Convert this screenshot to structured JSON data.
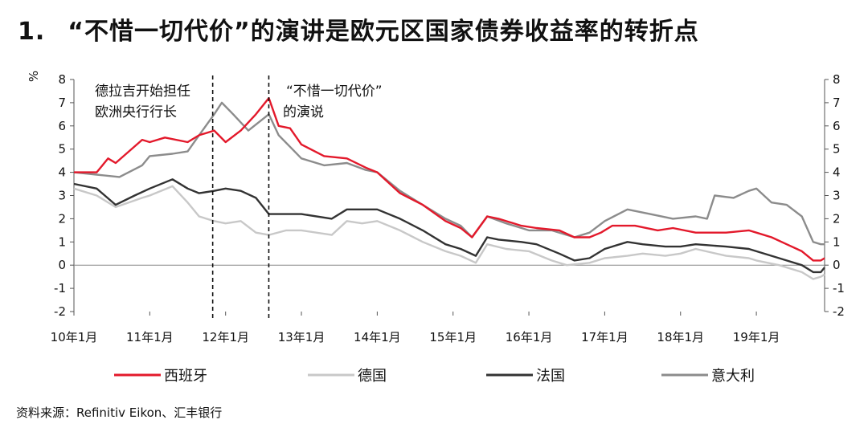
{
  "title": {
    "number": "1.",
    "text": "“不惜一切代价”的演讲是欧元区国家债券收益率的转折点"
  },
  "source": "资料来源：Refinitiv Eikon、汇丰银行",
  "chart_data": {
    "type": "line",
    "ylabel": "%",
    "ylim": [
      -2,
      8
    ],
    "yticks": [
      "8",
      "7",
      "6",
      "5",
      "4",
      "3",
      "2",
      "1",
      "0",
      "-1",
      "-2"
    ],
    "xlim": [
      2010.0,
      2019.9
    ],
    "xticks": [
      {
        "x": 2010.0,
        "label": "10年1月"
      },
      {
        "x": 2011.0,
        "label": "11年1月"
      },
      {
        "x": 2012.0,
        "label": "12年1月"
      },
      {
        "x": 2013.0,
        "label": "13年1月"
      },
      {
        "x": 2014.0,
        "label": "14年1月"
      },
      {
        "x": 2015.0,
        "label": "15年1月"
      },
      {
        "x": 2016.0,
        "label": "16年1月"
      },
      {
        "x": 2017.0,
        "label": "17年1月"
      },
      {
        "x": 2018.0,
        "label": "18年1月"
      },
      {
        "x": 2019.0,
        "label": "19年1月"
      }
    ],
    "annotations": [
      {
        "x": 2011.83,
        "line1": "德拉吉开始担任",
        "line2": "欧洲央行行长"
      },
      {
        "x": 2012.57,
        "line1": "“不惜一切代价”",
        "line2": "的演说"
      }
    ],
    "legend_position": "bottom",
    "series": [
      {
        "name": "西班牙",
        "color": "#e3192b",
        "x": [
          2010.0,
          2010.3,
          2010.45,
          2010.55,
          2010.9,
          2011.0,
          2011.2,
          2011.5,
          2011.65,
          2011.85,
          2012.0,
          2012.2,
          2012.4,
          2012.57,
          2012.7,
          2012.85,
          2013.0,
          2013.3,
          2013.6,
          2013.85,
          2014.0,
          2014.3,
          2014.6,
          2014.9,
          2015.1,
          2015.25,
          2015.45,
          2015.6,
          2015.9,
          2016.1,
          2016.4,
          2016.6,
          2016.8,
          2016.95,
          2017.1,
          2017.4,
          2017.7,
          2017.9,
          2018.2,
          2018.4,
          2018.6,
          2018.9,
          2019.0,
          2019.2,
          2019.4,
          2019.6,
          2019.75,
          2019.85,
          2019.9
        ],
        "y": [
          4.0,
          4.0,
          4.6,
          4.4,
          5.4,
          5.3,
          5.5,
          5.3,
          5.6,
          5.8,
          5.3,
          5.8,
          6.5,
          7.2,
          6.0,
          5.9,
          5.2,
          4.7,
          4.6,
          4.2,
          4.0,
          3.1,
          2.6,
          1.9,
          1.6,
          1.2,
          2.1,
          2.0,
          1.7,
          1.6,
          1.5,
          1.2,
          1.2,
          1.4,
          1.7,
          1.7,
          1.5,
          1.6,
          1.4,
          1.4,
          1.4,
          1.5,
          1.4,
          1.2,
          0.9,
          0.6,
          0.2,
          0.2,
          0.3
        ]
      },
      {
        "name": "德国",
        "color": "#c8c8c8",
        "x": [
          2010.0,
          2010.3,
          2010.55,
          2010.9,
          2011.0,
          2011.3,
          2011.5,
          2011.65,
          2011.85,
          2012.0,
          2012.2,
          2012.4,
          2012.57,
          2012.8,
          2013.0,
          2013.4,
          2013.6,
          2013.8,
          2014.0,
          2014.3,
          2014.6,
          2014.9,
          2015.1,
          2015.3,
          2015.45,
          2015.7,
          2016.0,
          2016.3,
          2016.5,
          2016.8,
          2017.0,
          2017.3,
          2017.5,
          2017.8,
          2018.0,
          2018.2,
          2018.6,
          2018.9,
          2019.0,
          2019.3,
          2019.6,
          2019.75,
          2019.85,
          2019.9
        ],
        "y": [
          3.3,
          3.0,
          2.5,
          2.9,
          3.0,
          3.4,
          2.7,
          2.1,
          1.9,
          1.8,
          1.9,
          1.4,
          1.3,
          1.5,
          1.5,
          1.3,
          1.9,
          1.8,
          1.9,
          1.5,
          1.0,
          0.6,
          0.4,
          0.1,
          0.9,
          0.7,
          0.6,
          0.2,
          0.0,
          0.1,
          0.3,
          0.4,
          0.5,
          0.4,
          0.5,
          0.7,
          0.4,
          0.3,
          0.2,
          0.0,
          -0.3,
          -0.6,
          -0.5,
          -0.4
        ]
      },
      {
        "name": "法国",
        "color": "#333333",
        "x": [
          2010.0,
          2010.3,
          2010.55,
          2010.8,
          2011.0,
          2011.3,
          2011.5,
          2011.65,
          2011.85,
          2012.0,
          2012.2,
          2012.4,
          2012.57,
          2012.8,
          2013.0,
          2013.4,
          2013.6,
          2013.8,
          2014.0,
          2014.3,
          2014.6,
          2014.9,
          2015.1,
          2015.3,
          2015.45,
          2015.6,
          2015.9,
          2016.1,
          2016.4,
          2016.6,
          2016.8,
          2017.0,
          2017.3,
          2017.5,
          2017.8,
          2018.0,
          2018.2,
          2018.6,
          2018.9,
          2019.0,
          2019.3,
          2019.6,
          2019.75,
          2019.85,
          2019.9
        ],
        "y": [
          3.5,
          3.3,
          2.6,
          3.0,
          3.3,
          3.7,
          3.3,
          3.1,
          3.2,
          3.3,
          3.2,
          2.9,
          2.2,
          2.2,
          2.2,
          2.0,
          2.4,
          2.4,
          2.4,
          2.0,
          1.5,
          0.9,
          0.7,
          0.4,
          1.2,
          1.1,
          1.0,
          0.9,
          0.5,
          0.2,
          0.3,
          0.7,
          1.0,
          0.9,
          0.8,
          0.8,
          0.9,
          0.8,
          0.7,
          0.6,
          0.3,
          0.0,
          -0.3,
          -0.3,
          -0.1
        ]
      },
      {
        "name": "意大利",
        "color": "#8c8c8c",
        "x": [
          2010.0,
          2010.3,
          2010.6,
          2010.9,
          2011.0,
          2011.3,
          2011.5,
          2011.65,
          2011.85,
          2011.95,
          2012.1,
          2012.3,
          2012.57,
          2012.7,
          2012.85,
          2013.0,
          2013.3,
          2013.6,
          2013.85,
          2014.0,
          2014.3,
          2014.6,
          2014.9,
          2015.1,
          2015.25,
          2015.45,
          2015.7,
          2016.0,
          2016.3,
          2016.6,
          2016.8,
          2017.0,
          2017.3,
          2017.6,
          2017.9,
          2018.2,
          2018.35,
          2018.45,
          2018.7,
          2018.9,
          2019.0,
          2019.2,
          2019.4,
          2019.6,
          2019.75,
          2019.85,
          2019.9
        ],
        "y": [
          4.0,
          3.9,
          3.8,
          4.3,
          4.7,
          4.8,
          4.9,
          5.6,
          6.5,
          7.0,
          6.5,
          5.8,
          6.5,
          5.6,
          5.1,
          4.6,
          4.3,
          4.4,
          4.1,
          4.0,
          3.2,
          2.6,
          2.0,
          1.7,
          1.2,
          2.1,
          1.8,
          1.5,
          1.5,
          1.2,
          1.4,
          1.9,
          2.4,
          2.2,
          2.0,
          2.1,
          2.0,
          3.0,
          2.9,
          3.2,
          3.3,
          2.7,
          2.6,
          2.1,
          1.0,
          0.9,
          0.9
        ]
      }
    ]
  }
}
